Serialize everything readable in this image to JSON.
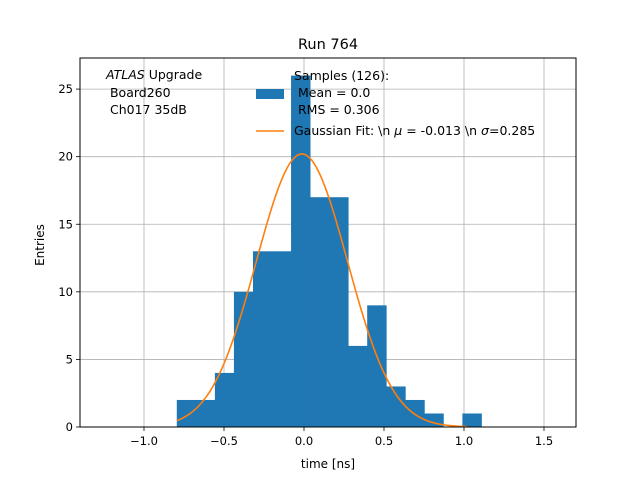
{
  "chart_data": {
    "type": "bar",
    "title": "Run 764",
    "xlabel": "time [ns]",
    "ylabel": "Entries",
    "xlim": [
      -1.4,
      1.7
    ],
    "ylim": [
      0,
      27.3
    ],
    "xticks": [
      -1.0,
      -0.5,
      0.0,
      0.5,
      1.0,
      1.5
    ],
    "xtick_labels": [
      "−1.0",
      "−0.5",
      "0.0",
      "0.5",
      "1.0",
      "1.5"
    ],
    "yticks": [
      0,
      5,
      10,
      15,
      20,
      25
    ],
    "ytick_labels": [
      "0",
      "5",
      "10",
      "15",
      "20",
      "25"
    ],
    "grid": true,
    "legend_position": "upper-right",
    "annotation": {
      "lines": [
        {
          "italic": "ATLAS",
          "rest": " Upgrade"
        },
        {
          "italic": "",
          "rest": " Board260"
        },
        {
          "italic": "",
          "rest": " Ch017 35dB"
        }
      ]
    },
    "histogram": {
      "name_lines": [
        "Samples (126):",
        " Mean = 0.0",
        " RMS = 0.306"
      ],
      "color": "#1f77b4",
      "bin_edges": [
        -0.795,
        -0.676,
        -0.557,
        -0.438,
        -0.319,
        -0.2,
        -0.081,
        0.038,
        0.157,
        0.276,
        0.395,
        0.514,
        0.633,
        0.752,
        0.871,
        0.99,
        1.109
      ],
      "counts": [
        2,
        2,
        4,
        10,
        13,
        13,
        26,
        17,
        17,
        6,
        9,
        3,
        2,
        1,
        0,
        1
      ]
    },
    "fit": {
      "type": "line",
      "name_prefix": "Gaussian Fit: \\n ",
      "mu_symbol": "μ",
      "mu_text": " = -0.013 \\n ",
      "sigma_symbol": "σ",
      "sigma_text": "=0.285",
      "color": "#ff7f0e",
      "mu": -0.013,
      "sigma": 0.285,
      "amplitude": 20.2,
      "x_range": [
        -0.795,
        1.02
      ]
    }
  }
}
